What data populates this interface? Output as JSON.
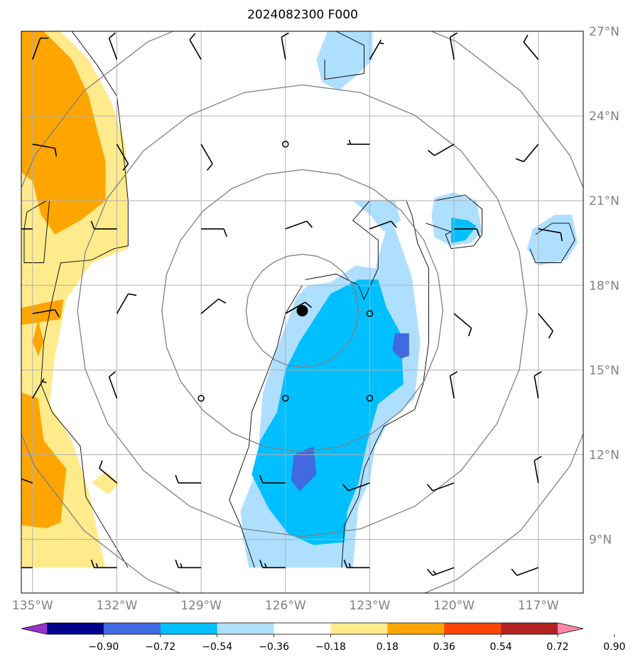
{
  "title": "2024082300 F000",
  "map": {
    "lon_range": [
      -135.4,
      -115.4
    ],
    "lat_range": [
      7.1,
      27.0
    ],
    "x_ticks": [
      {
        "lon": -135,
        "label": "135°W"
      },
      {
        "lon": -132,
        "label": "132°W"
      },
      {
        "lon": -129,
        "label": "129°W"
      },
      {
        "lon": -126,
        "label": "126°W"
      },
      {
        "lon": -123,
        "label": "123°W"
      },
      {
        "lon": -120,
        "label": "120°W"
      },
      {
        "lon": -117,
        "label": "117°W"
      }
    ],
    "y_ticks": [
      {
        "lat": 27,
        "label": "27°N"
      },
      {
        "lat": 24,
        "label": "24°N"
      },
      {
        "lat": 21,
        "label": "21°N"
      },
      {
        "lat": 18,
        "label": "18°N"
      },
      {
        "lat": 15,
        "label": "15°N"
      },
      {
        "lat": 12,
        "label": "12°N"
      },
      {
        "lat": 9,
        "label": "9°N"
      }
    ],
    "gridlines": true,
    "storm_center": {
      "lon": -125.4,
      "lat": 17.1
    },
    "range_rings_deg": [
      2,
      5,
      8,
      11
    ],
    "colors": {
      "frame": "#000000",
      "grid": "#b0b0b0",
      "rings": "#808080",
      "contour": "#000000",
      "barb": "#000000"
    }
  },
  "shading": {
    "levels": [
      -0.9,
      -0.72,
      -0.54,
      -0.36,
      -0.18,
      0.18,
      0.36,
      0.54,
      0.72,
      0.9
    ],
    "colors": [
      "#9932cc",
      "#00008b",
      "#4169e1",
      "#00bfff",
      "#afdfff",
      "#ffffff",
      "#ffeb8c",
      "#ffa500",
      "#ff4500",
      "#b22222",
      "#ff88aa"
    ],
    "regions": [
      {
        "value": 0.27,
        "points": [
          [
            -135.4,
            27
          ],
          [
            -134,
            27
          ],
          [
            -133,
            26
          ],
          [
            -132.2,
            24.5
          ],
          [
            -131.7,
            23
          ],
          [
            -131.6,
            21
          ],
          [
            -131.6,
            19.3
          ],
          [
            -132.9,
            18.8
          ],
          [
            -133.8,
            17.5
          ],
          [
            -134.2,
            15.5
          ],
          [
            -134.4,
            13.8
          ],
          [
            -133.6,
            12.5
          ],
          [
            -133,
            10.7
          ],
          [
            -132.7,
            9.3
          ],
          [
            -132.4,
            8
          ],
          [
            -135.4,
            8
          ]
        ]
      },
      {
        "value": 0.45,
        "points": [
          [
            -135.4,
            27
          ],
          [
            -134.6,
            27
          ],
          [
            -133.6,
            26
          ],
          [
            -133,
            24.7
          ],
          [
            -132.7,
            23.5
          ],
          [
            -132.4,
            22.4
          ],
          [
            -132.4,
            21
          ],
          [
            -133.3,
            20.3
          ],
          [
            -134.2,
            19.8
          ],
          [
            -134.7,
            20.5
          ],
          [
            -135,
            21.7
          ],
          [
            -135.4,
            22
          ]
        ]
      },
      {
        "value": 0.45,
        "points": [
          [
            -135.4,
            17.2
          ],
          [
            -134.5,
            17.4
          ],
          [
            -133.9,
            17.5
          ],
          [
            -134,
            16.8
          ],
          [
            -135.4,
            16.6
          ]
        ]
      },
      {
        "value": 0.45,
        "points": [
          [
            -134.8,
            16.8
          ],
          [
            -134.6,
            16
          ],
          [
            -134.8,
            15.5
          ],
          [
            -135,
            16
          ]
        ]
      },
      {
        "value": 0.45,
        "points": [
          [
            -135.4,
            14.2
          ],
          [
            -134.8,
            14
          ],
          [
            -134.6,
            12.5
          ],
          [
            -133.8,
            11.5
          ],
          [
            -134,
            9.6
          ],
          [
            -134.5,
            9.4
          ],
          [
            -135.4,
            9.5
          ]
        ]
      },
      {
        "value": 0.27,
        "points": [
          [
            -132.9,
            11
          ],
          [
            -132.4,
            11.4
          ],
          [
            -131.9,
            11
          ],
          [
            -132.3,
            10.6
          ]
        ]
      },
      {
        "value": -0.27,
        "points": [
          [
            -124.5,
            27
          ],
          [
            -122.9,
            27
          ],
          [
            -122.9,
            26
          ],
          [
            -123.4,
            25.5
          ],
          [
            -124.1,
            24.9
          ],
          [
            -124.7,
            25.2
          ],
          [
            -124.9,
            26
          ]
        ]
      },
      {
        "value": -0.27,
        "points": [
          [
            -120.7,
            21.1
          ],
          [
            -120,
            21.3
          ],
          [
            -119.2,
            21
          ],
          [
            -119,
            19.9
          ],
          [
            -119.4,
            19.5
          ],
          [
            -120.1,
            19.4
          ],
          [
            -120.7,
            19.7
          ],
          [
            -120.8,
            20.5
          ]
        ]
      },
      {
        "value": -0.45,
        "points": [
          [
            -120.1,
            20.4
          ],
          [
            -119.5,
            20.3
          ],
          [
            -119.2,
            20.1
          ],
          [
            -119.6,
            19.6
          ],
          [
            -120.1,
            19.5
          ]
        ]
      },
      {
        "value": -0.27,
        "points": [
          [
            -117.2,
            20
          ],
          [
            -116.4,
            20.5
          ],
          [
            -115.8,
            20.5
          ],
          [
            -115.6,
            19.5
          ],
          [
            -116,
            18.9
          ],
          [
            -117,
            18.7
          ],
          [
            -117.4,
            19.3
          ]
        ]
      },
      {
        "value": -0.27,
        "points": [
          [
            -125.2,
            18
          ],
          [
            -124.4,
            18.1
          ],
          [
            -123.5,
            18.7
          ],
          [
            -122.8,
            18.6
          ],
          [
            -122.3,
            20.4
          ],
          [
            -122.1,
            20
          ],
          [
            -121.5,
            18.3
          ],
          [
            -121.2,
            16
          ],
          [
            -121.4,
            14
          ],
          [
            -122.3,
            13.2
          ],
          [
            -122.8,
            12.3
          ],
          [
            -123,
            11.1
          ],
          [
            -123.4,
            10.2
          ],
          [
            -123.6,
            8
          ],
          [
            -127.3,
            8
          ],
          [
            -127.5,
            9
          ],
          [
            -127.6,
            10
          ],
          [
            -127,
            11.5
          ],
          [
            -126.9,
            13
          ],
          [
            -126.8,
            14.2
          ],
          [
            -126.4,
            15.5
          ],
          [
            -125.9,
            16.8
          ],
          [
            -125.6,
            17.6
          ]
        ]
      },
      {
        "value": -0.27,
        "points": [
          [
            -123.6,
            21
          ],
          [
            -122.1,
            21
          ],
          [
            -121.9,
            20.3
          ],
          [
            -122.5,
            19.9
          ],
          [
            -123,
            20.5
          ]
        ]
      },
      {
        "value": -0.45,
        "points": [
          [
            -124.4,
            17.7
          ],
          [
            -123.4,
            18.2
          ],
          [
            -122.7,
            18.2
          ],
          [
            -122.4,
            17.2
          ],
          [
            -121.9,
            16.3
          ],
          [
            -121.8,
            14.5
          ],
          [
            -122.7,
            13.8
          ],
          [
            -123.1,
            12.4
          ],
          [
            -123.4,
            11
          ],
          [
            -123.8,
            10
          ],
          [
            -123.9,
            8.9
          ],
          [
            -125,
            8.8
          ],
          [
            -125.9,
            9.2
          ],
          [
            -126.6,
            10.1
          ],
          [
            -127.2,
            11.3
          ],
          [
            -126.9,
            12.5
          ],
          [
            -126.3,
            13.5
          ],
          [
            -126,
            15
          ],
          [
            -125.5,
            16
          ]
        ]
      },
      {
        "value": -0.63,
        "points": [
          [
            -122.1,
            16.3
          ],
          [
            -121.6,
            16.3
          ],
          [
            -121.6,
            15.5
          ],
          [
            -121.9,
            15.4
          ],
          [
            -122.2,
            15.7
          ]
        ]
      },
      {
        "value": -0.63,
        "points": [
          [
            -125.7,
            12
          ],
          [
            -125,
            12.3
          ],
          [
            -124.9,
            11.3
          ],
          [
            -125.5,
            10.7
          ],
          [
            -125.8,
            11.1
          ]
        ]
      }
    ],
    "zero_contours": [
      [
        [
          -133.6,
          27
        ],
        [
          -132.7,
          25.8
        ],
        [
          -132,
          24.7
        ],
        [
          -131.8,
          23
        ],
        [
          -131.6,
          21
        ],
        [
          -131.6,
          19.4
        ],
        [
          -132.1,
          19.3
        ],
        [
          -132.9,
          18.9
        ],
        [
          -134,
          18.8
        ],
        [
          -134.3,
          17.5
        ],
        [
          -134.6,
          16
        ],
        [
          -134.7,
          14.5
        ],
        [
          -134.3,
          13.5
        ],
        [
          -133.3,
          12.3
        ],
        [
          -133.1,
          10.5
        ],
        [
          -132.5,
          9.5
        ],
        [
          -131.9,
          8.5
        ],
        [
          -131.6,
          8
        ]
      ],
      [
        [
          -134.5,
          21
        ],
        [
          -135.2,
          20.6
        ],
        [
          -135.3,
          20
        ],
        [
          -135.3,
          18.8
        ],
        [
          -134.6,
          18.8
        ],
        [
          -134.4,
          21
        ]
      ],
      [
        [
          -124.2,
          27
        ],
        [
          -123.2,
          26.5
        ],
        [
          -123.2,
          25.5
        ],
        [
          -124.6,
          25.3
        ],
        [
          -124.6,
          26
        ]
      ],
      [
        [
          -120.7,
          21
        ],
        [
          -119.6,
          21.2
        ],
        [
          -119,
          20.7
        ],
        [
          -119,
          19.8
        ],
        [
          -119.3,
          19.4
        ],
        [
          -120.1,
          19.3
        ],
        [
          -120.3,
          19.8
        ],
        [
          -120.1,
          19.9
        ],
        [
          -121,
          20.2
        ]
      ],
      [
        [
          -117.1,
          19.8
        ],
        [
          -116.5,
          20.2
        ],
        [
          -115.9,
          20.2
        ],
        [
          -115.7,
          19.6
        ],
        [
          -116.2,
          18.8
        ],
        [
          -117.1,
          18.8
        ],
        [
          -117.3,
          19.3
        ]
      ],
      [
        [
          -125.3,
          18.2
        ],
        [
          -124.2,
          18.4
        ],
        [
          -123.4,
          18
        ],
        [
          -123.2,
          17.5
        ],
        [
          -122.7,
          18.6
        ],
        [
          -122.7,
          19.6
        ],
        [
          -123.6,
          20.3
        ],
        [
          -123,
          21
        ],
        [
          -121.7,
          21
        ],
        [
          -121.5,
          20.5
        ],
        [
          -121.3,
          19.5
        ],
        [
          -120.9,
          18.6
        ],
        [
          -120.9,
          17.5
        ],
        [
          -120.9,
          16
        ],
        [
          -121.1,
          14.5
        ],
        [
          -121.4,
          13.6
        ],
        [
          -122.5,
          13
        ],
        [
          -122.8,
          12.4
        ],
        [
          -123.2,
          11.5
        ],
        [
          -123.4,
          10.5
        ],
        [
          -123.9,
          9.5
        ],
        [
          -124,
          8
        ]
      ],
      [
        [
          -125.4,
          18
        ],
        [
          -126,
          17
        ],
        [
          -126.3,
          15.8
        ],
        [
          -126.8,
          14.5
        ],
        [
          -127.2,
          13.5
        ],
        [
          -127.3,
          12.3
        ],
        [
          -127.7,
          11.2
        ],
        [
          -128,
          10.4
        ],
        [
          -127.6,
          9.5
        ],
        [
          -127.3,
          8.6
        ],
        [
          -127.1,
          8
        ]
      ]
    ]
  },
  "wind_barbs": [
    {
      "lon": -135.0,
      "lat": 26.0,
      "dir": 20,
      "spd": 10
    },
    {
      "lon": -132.0,
      "lat": 26.0,
      "dir": 340,
      "spd": 10
    },
    {
      "lon": -129.0,
      "lat": 26.0,
      "dir": 330,
      "spd": 10
    },
    {
      "lon": -126.0,
      "lat": 26.0,
      "dir": 350,
      "spd": 10
    },
    {
      "lon": -123.0,
      "lat": 26.0,
      "dir": 30,
      "spd": 5
    },
    {
      "lon": -120.0,
      "lat": 26.0,
      "dir": 350,
      "spd": 10
    },
    {
      "lon": -117.0,
      "lat": 26.0,
      "dir": 320,
      "spd": 10
    },
    {
      "lon": -135.0,
      "lat": 23.0,
      "dir": 100,
      "spd": 10
    },
    {
      "lon": -132.0,
      "lat": 23.0,
      "dir": 150,
      "spd": 10
    },
    {
      "lon": -129.0,
      "lat": 23.0,
      "dir": 150,
      "spd": 10
    },
    {
      "lon": -126.0,
      "lat": 23.0,
      "dir": 0,
      "spd": 0
    },
    {
      "lon": -123.0,
      "lat": 23.0,
      "dir": 270,
      "spd": 5
    },
    {
      "lon": -120.0,
      "lat": 23.0,
      "dir": 240,
      "spd": 10
    },
    {
      "lon": -117.0,
      "lat": 23.0,
      "dir": 220,
      "spd": 10
    },
    {
      "lon": -135.0,
      "lat": 20.0,
      "dir": 270,
      "spd": 10
    },
    {
      "lon": -132.0,
      "lat": 20.0,
      "dir": 270,
      "spd": 10
    },
    {
      "lon": -129.0,
      "lat": 20.0,
      "dir": 90,
      "spd": 10
    },
    {
      "lon": -126.0,
      "lat": 20.0,
      "dir": 70,
      "spd": 10
    },
    {
      "lon": -123.0,
      "lat": 20.0,
      "dir": 70,
      "spd": 10
    },
    {
      "lon": -120.0,
      "lat": 20.0,
      "dir": 90,
      "spd": 10
    },
    {
      "lon": -117.0,
      "lat": 20.0,
      "dir": 100,
      "spd": 10
    },
    {
      "lon": -135.0,
      "lat": 17.0,
      "dir": 80,
      "spd": 10
    },
    {
      "lon": -132.0,
      "lat": 17.0,
      "dir": 30,
      "spd": 10
    },
    {
      "lon": -129.0,
      "lat": 17.0,
      "dir": 50,
      "spd": 10
    },
    {
      "lon": -126.0,
      "lat": 17.0,
      "dir": 60,
      "spd": 10
    },
    {
      "lon": -123.0,
      "lat": 17.0,
      "dir": 0,
      "spd": 0
    },
    {
      "lon": -120.0,
      "lat": 17.0,
      "dir": 130,
      "spd": 10
    },
    {
      "lon": -117.0,
      "lat": 17.0,
      "dir": 140,
      "spd": 10
    },
    {
      "lon": -135.0,
      "lat": 14.0,
      "dir": 30,
      "spd": 5
    },
    {
      "lon": -132.0,
      "lat": 14.0,
      "dir": 340,
      "spd": 10
    },
    {
      "lon": -129.0,
      "lat": 14.0,
      "dir": 0,
      "spd": 0
    },
    {
      "lon": -126.0,
      "lat": 14.0,
      "dir": 0,
      "spd": 0
    },
    {
      "lon": -123.0,
      "lat": 14.0,
      "dir": 0,
      "spd": 0
    },
    {
      "lon": -120.0,
      "lat": 14.0,
      "dir": 350,
      "spd": 10
    },
    {
      "lon": -117.0,
      "lat": 14.0,
      "dir": 350,
      "spd": 10
    },
    {
      "lon": -135.0,
      "lat": 11.0,
      "dir": 290,
      "spd": 10
    },
    {
      "lon": -132.0,
      "lat": 11.0,
      "dir": 310,
      "spd": 10
    },
    {
      "lon": -129.0,
      "lat": 11.0,
      "dir": 270,
      "spd": 10
    },
    {
      "lon": -126.0,
      "lat": 11.0,
      "dir": 270,
      "spd": 10
    },
    {
      "lon": -123.0,
      "lat": 11.0,
      "dir": 250,
      "spd": 10
    },
    {
      "lon": -120.0,
      "lat": 11.0,
      "dir": 250,
      "spd": 10
    },
    {
      "lon": -117.0,
      "lat": 11.0,
      "dir": 350,
      "spd": 10
    },
    {
      "lon": -135.0,
      "lat": 8.0,
      "dir": 270,
      "spd": 15
    },
    {
      "lon": -132.0,
      "lat": 8.0,
      "dir": 270,
      "spd": 15
    },
    {
      "lon": -129.0,
      "lat": 8.0,
      "dir": 270,
      "spd": 15
    },
    {
      "lon": -126.0,
      "lat": 8.0,
      "dir": 270,
      "spd": 15
    },
    {
      "lon": -123.0,
      "lat": 8.0,
      "dir": 270,
      "spd": 15
    },
    {
      "lon": -120.0,
      "lat": 8.0,
      "dir": 250,
      "spd": 15
    },
    {
      "lon": -117.0,
      "lat": 8.0,
      "dir": 250,
      "spd": 10
    }
  ],
  "colorbar": {
    "labels": [
      "−0.90",
      "−0.72",
      "−0.54",
      "−0.36",
      "−0.18",
      "0.18",
      "0.36",
      "0.54",
      "0.72",
      "0.90"
    ],
    "colors": [
      "#00008b",
      "#4169e1",
      "#00bfff",
      "#afdfff",
      "#ffffff",
      "#ffeb8c",
      "#ffa500",
      "#ff4500",
      "#b22222"
    ],
    "under_color": "#9932cc",
    "over_color": "#ff88aa",
    "extend": "both"
  }
}
